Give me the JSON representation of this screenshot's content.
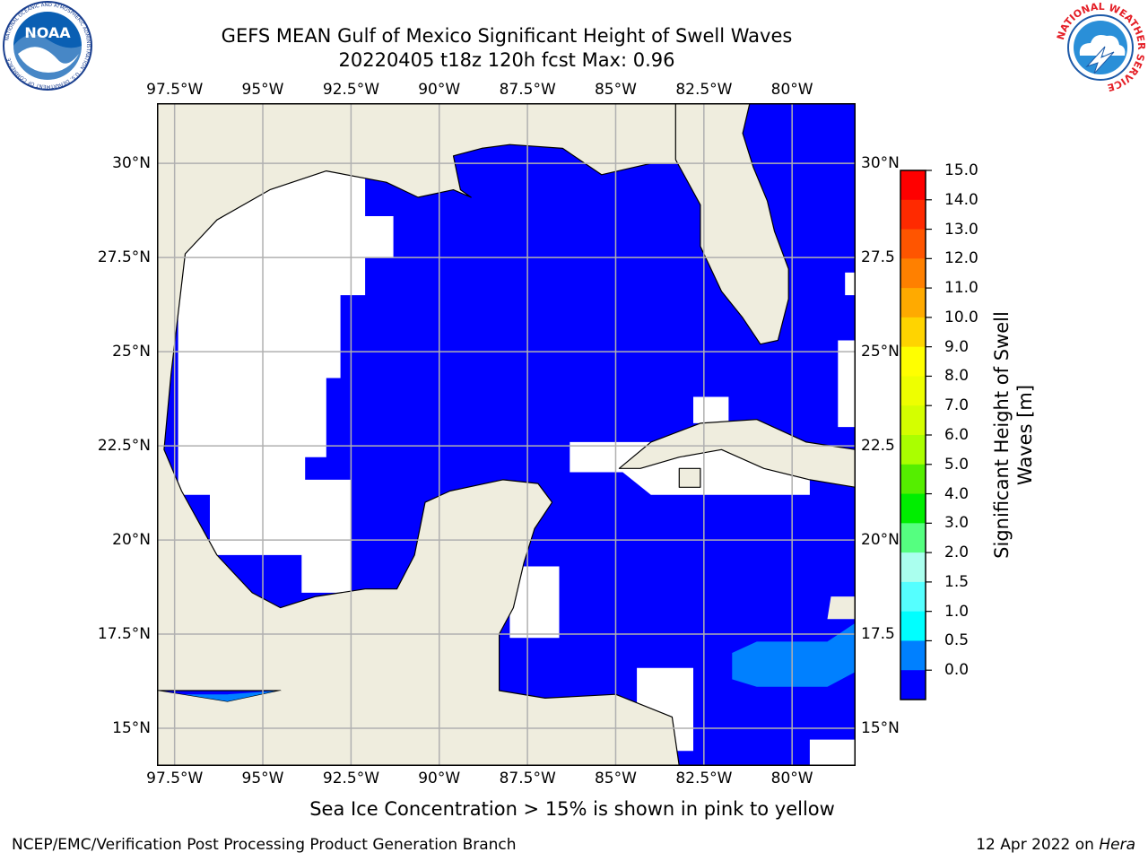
{
  "title": {
    "line1": "GEFS MEAN Gulf of Mexico Significant Height of Swell Waves",
    "line2": "20220405 t18z 120h fcst   Max: 0.96"
  },
  "logos": {
    "noaa": {
      "text": "NOAA",
      "ring_text": "NATIONAL OCEANIC AND ATMOSPHERIC ADMINISTRATION · U.S. DEPARTMENT OF COMMERCE",
      "icon": "noaa-logo-icon"
    },
    "nws": {
      "ring_text": "NATIONAL WEATHER SERVICE",
      "icon": "nws-logo-icon"
    }
  },
  "map": {
    "lon_ticks": [
      "97.5°W",
      "95°W",
      "92.5°W",
      "90°W",
      "87.5°W",
      "85°W",
      "82.5°W",
      "80°W"
    ],
    "lat_ticks_left": [
      "30°N",
      "27.5°N",
      "25°N",
      "22.5°N",
      "20°N",
      "17.5°N",
      "15°N"
    ],
    "lat_ticks_right": [
      "30°N",
      "27.5",
      "25°N",
      "22.5",
      "20°N",
      "17.5",
      "15°N"
    ],
    "extent": {
      "lon_min": -98,
      "lon_max": -78.2,
      "lat_min": 14,
      "lat_max": 31.6
    },
    "colors": {
      "land": "#efedde",
      "no_swell": "#ffffff",
      "swell_0_0.5": "#0000ff",
      "swell_0.5_1.0": "#0080ff",
      "grid": "#b0b0b0"
    }
  },
  "colorbar": {
    "title": "Significant Height of Swell Waves [m]",
    "labels": [
      "15.0",
      "14.0",
      "13.0",
      "12.0",
      "11.0",
      "10.0",
      "9.0",
      "8.0",
      "7.0",
      "6.0",
      "5.0",
      "4.0",
      "3.0",
      "2.0",
      "1.5",
      "1.0",
      "0.5",
      "0.0"
    ],
    "colors_top_to_bottom": [
      "#ff0000",
      "#ff2a00",
      "#ff5500",
      "#ff8000",
      "#ffaa00",
      "#ffd400",
      "#ffff00",
      "#eeff00",
      "#d4ff00",
      "#aaff00",
      "#55ee00",
      "#00ee00",
      "#55ff80",
      "#aaffee",
      "#55ffff",
      "#00ffff",
      "#0080ff",
      "#0000ff"
    ]
  },
  "footer": {
    "note": "Sea Ice Concentration > 15% is shown in pink to yellow",
    "left": "NCEP/EMC/Verification Post Processing Product Generation Branch",
    "date": "12 Apr 2022 on ",
    "host": "Hera"
  }
}
